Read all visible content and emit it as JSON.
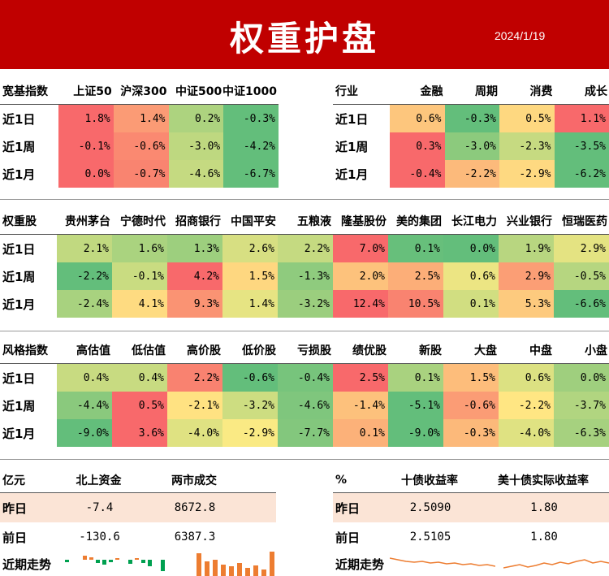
{
  "header": {
    "title": "权重护盘",
    "date": "2024/1/19",
    "bg": "#c00000"
  },
  "broad": {
    "label": "宽基指数",
    "cols": [
      "上证50",
      "沪深300",
      "中证500",
      "中证1000"
    ],
    "rows": [
      {
        "label": "近1日",
        "values": [
          "1.8%",
          "1.4%",
          "0.2%",
          "-0.3%"
        ]
      },
      {
        "label": "近1周",
        "values": [
          "-0.1%",
          "-0.6%",
          "-3.0%",
          "-4.2%"
        ]
      },
      {
        "label": "近1月",
        "values": [
          "0.0%",
          "-0.7%",
          "-4.6%",
          "-6.7%"
        ]
      }
    ]
  },
  "industry": {
    "label": "行业",
    "cols": [
      "金融",
      "周期",
      "消费",
      "成长"
    ],
    "rows": [
      {
        "label": "近1日",
        "values": [
          "0.6%",
          "-0.3%",
          "0.5%",
          "1.1%"
        ]
      },
      {
        "label": "近1周",
        "values": [
          "0.3%",
          "-3.0%",
          "-2.3%",
          "-3.5%"
        ]
      },
      {
        "label": "近1月",
        "values": [
          "-0.4%",
          "-2.2%",
          "-2.9%",
          "-6.2%"
        ]
      }
    ]
  },
  "weights": {
    "label": "权重股",
    "cols": [
      "贵州茅台",
      "宁德时代",
      "招商银行",
      "中国平安",
      "五粮液",
      "隆基股份",
      "美的集团",
      "长江电力",
      "兴业银行",
      "恒瑞医药"
    ],
    "rows": [
      {
        "label": "近1日",
        "values": [
          "2.1%",
          "1.6%",
          "1.3%",
          "2.6%",
          "2.2%",
          "7.0%",
          "0.1%",
          "0.0%",
          "1.9%",
          "2.9%"
        ]
      },
      {
        "label": "近1周",
        "values": [
          "-2.2%",
          "-0.1%",
          "4.2%",
          "1.5%",
          "-1.3%",
          "2.0%",
          "2.5%",
          "0.6%",
          "2.9%",
          "-0.5%"
        ]
      },
      {
        "label": "近1月",
        "values": [
          "-2.4%",
          "4.1%",
          "9.3%",
          "1.4%",
          "-3.2%",
          "12.4%",
          "10.5%",
          "0.1%",
          "5.3%",
          "-6.6%"
        ]
      }
    ]
  },
  "style": {
    "label": "风格指数",
    "cols": [
      "高估值",
      "低估值",
      "高价股",
      "低价股",
      "亏损股",
      "绩优股",
      "新股",
      "大盘",
      "中盘",
      "小盘"
    ],
    "rows": [
      {
        "label": "近1日",
        "values": [
          "0.4%",
          "0.4%",
          "2.2%",
          "-0.6%",
          "-0.4%",
          "2.5%",
          "0.1%",
          "1.5%",
          "0.6%",
          "0.0%"
        ]
      },
      {
        "label": "近1周",
        "values": [
          "-4.4%",
          "0.5%",
          "-2.1%",
          "-3.2%",
          "-4.6%",
          "-1.4%",
          "-5.1%",
          "-0.6%",
          "-2.2%",
          "-3.7%"
        ]
      },
      {
        "label": "近1月",
        "values": [
          "-9.0%",
          "3.6%",
          "-4.0%",
          "-2.9%",
          "-7.7%",
          "0.1%",
          "-9.0%",
          "-0.3%",
          "-4.0%",
          "-6.3%"
        ]
      }
    ]
  },
  "funds": {
    "unit": "亿元",
    "cols": [
      "北上资金",
      "两市成交"
    ],
    "rows": [
      {
        "label": "昨日",
        "values": [
          "-7.4",
          "8672.8"
        ]
      },
      {
        "label": "前日",
        "values": [
          "-130.6",
          "6387.3"
        ]
      }
    ],
    "trend_label": "近期走势"
  },
  "yields": {
    "unit": "%",
    "cols": [
      "十债收益率",
      "美十债实际收益率"
    ],
    "rows": [
      {
        "label": "昨日",
        "values": [
          "2.5090",
          "1.80"
        ]
      },
      {
        "label": "前日",
        "values": [
          "2.5105",
          "1.80"
        ]
      }
    ],
    "trend_label": "近期走势"
  },
  "colors": {
    "red": "#f8696b",
    "yellow": "#ffeb84",
    "green": "#63be7b",
    "bar_positive": "#ed7d31",
    "bar_north_pos": "#ed7d31",
    "bar_north_neg": "#00a050",
    "line": "#ed7d31"
  }
}
